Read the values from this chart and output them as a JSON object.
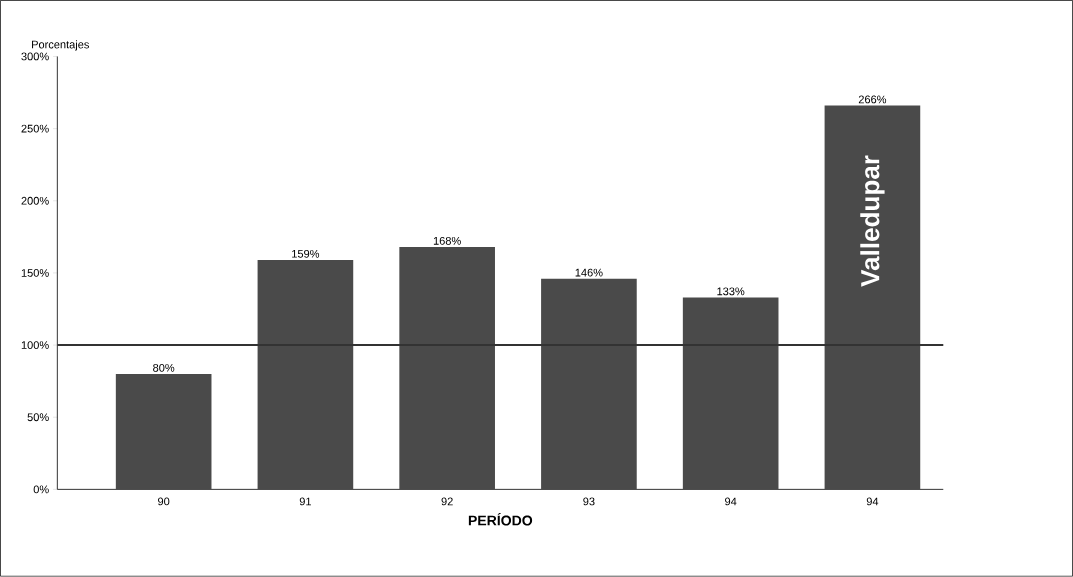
{
  "chart_data": {
    "type": "bar",
    "xlabel": "**PERÍODO**",
    "ylabel": "Porcentajes",
    "categories": [
      "90",
      "91",
      "92",
      "93",
      "94",
      "94"
    ],
    "values": [
      80,
      159,
      168,
      146,
      133,
      266
    ],
    "value_labels": [
      "80%",
      "159%",
      "168%",
      "146%",
      "133%",
      "266%"
    ],
    "color": "#4a4a4a",
    "ylim": [
      0,
      300
    ],
    "yticks": [
      {
        "value": 0,
        "label": "0%"
      },
      {
        "value": 50,
        "label": "50%"
      },
      {
        "value": 100,
        "label": "100%"
      },
      {
        "value": 150,
        "label": "150%"
      },
      {
        "value": 200,
        "label": "200%"
      },
      {
        "value": 250,
        "label": "250%"
      },
      {
        "value": 300,
        "label": "300%"
      }
    ],
    "ref_lines": [
      {
        "axis": "y",
        "value": 100,
        "color": "#333333"
      }
    ],
    "annotations": [
      "Valledupar"
    ],
    "grid": false
  }
}
